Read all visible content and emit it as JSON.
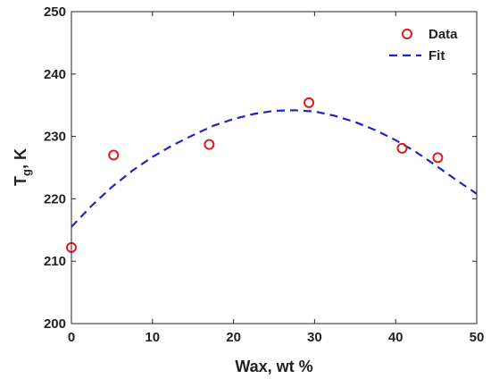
{
  "chart_data": {
    "type": "scatter",
    "xlabel": "Wax, wt %",
    "ylabel": {
      "main": "T",
      "sub": "g",
      "rest": ", K"
    },
    "xlim": [
      0,
      50
    ],
    "ylim": [
      200,
      250
    ],
    "xticks": [
      0,
      10,
      20,
      30,
      40,
      50
    ],
    "yticks": [
      200,
      210,
      220,
      230,
      240,
      250
    ],
    "grid": false,
    "legend_position": "top-right",
    "series": [
      {
        "name": "Data",
        "style": "markers",
        "color": "#e31a1c",
        "x": [
          0,
          5.2,
          17,
          29.3,
          40.8,
          45.2
        ],
        "y": [
          212.2,
          227,
          228.7,
          235.4,
          228.1,
          226.6
        ]
      },
      {
        "name": "Fit",
        "style": "dashed-line",
        "color": "#1f24cc",
        "x": [
          0,
          2.5,
          5,
          7.5,
          10,
          12.5,
          15,
          17.5,
          20,
          22.5,
          25,
          27.5,
          30,
          32.5,
          35,
          37.5,
          40,
          42.5,
          45,
          47.5,
          50
        ],
        "y": [
          215.5,
          218.9,
          221.9,
          224.5,
          226.7,
          228.6,
          230.2,
          231.7,
          232.8,
          233.6,
          234.1,
          234.2,
          234.0,
          233.3,
          232.3,
          231.0,
          229.4,
          227.5,
          225.3,
          223.0,
          220.8
        ]
      }
    ]
  }
}
